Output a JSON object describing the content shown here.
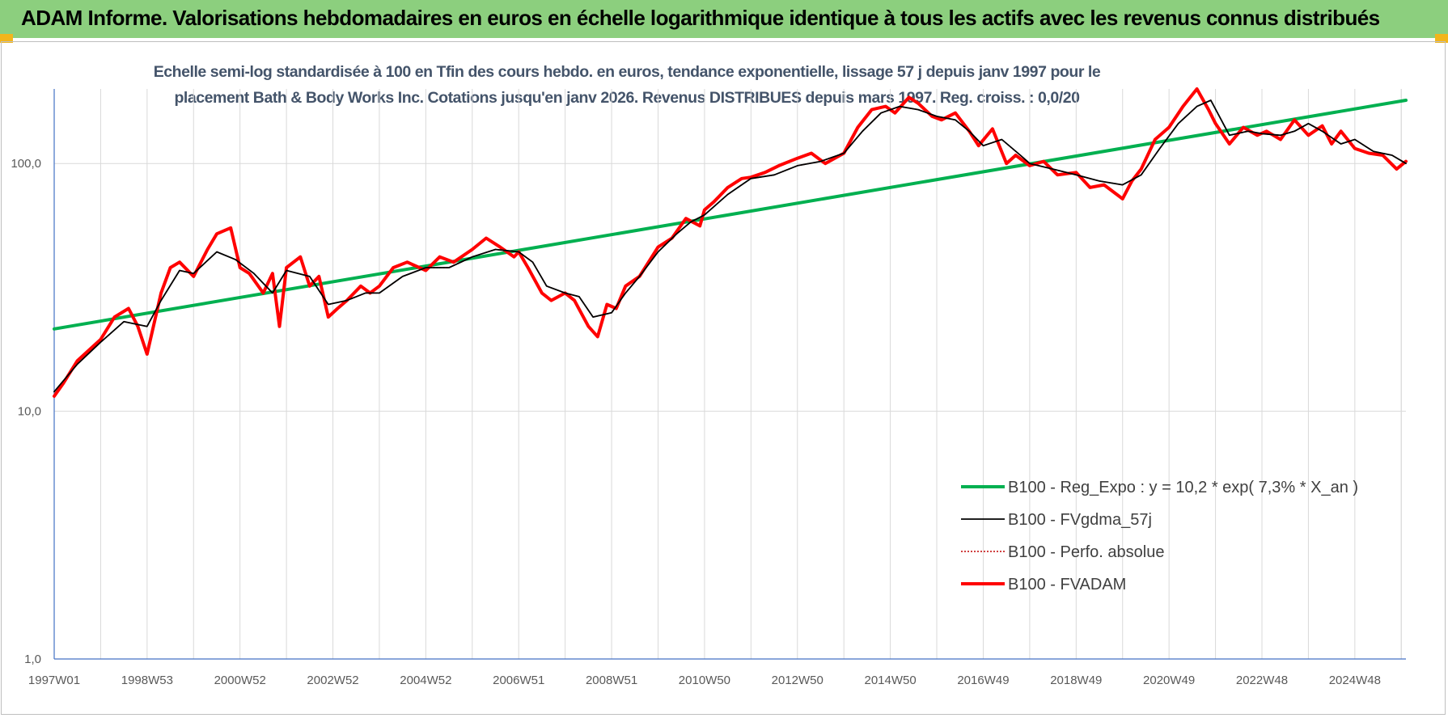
{
  "header": {
    "title": "ADAM Informe. Valorisations hebdomadaires en euros en échelle logarithmique identique à tous les actifs avec les revenus connus distribués"
  },
  "colors": {
    "header_bg": "#8ccf7e",
    "corner": "#f2b51c",
    "subtitle": "#44546a",
    "regression": "#00b050",
    "smoothed": "#000000",
    "perfo": "#c00000",
    "fvadam": "#ff0000"
  },
  "chart_data": {
    "type": "line",
    "title_line1": "Echelle semi-log standardisée à 100 en Tfin des cours hebdo. en euros, tendance exponentielle, lissage 57 j depuis janv 1997 pour le",
    "title_line2": "placement Bath & Body Works Inc. Cotations jusqu'en janv 2026.  Revenus DISTRIBUES depuis mars  1997. Reg. croiss. : 0,0/20",
    "y_scale": "log",
    "ylim": [
      1,
      200
    ],
    "xlim": [
      1997.0,
      2026.1
    ],
    "y_ticks": [
      {
        "value": 1,
        "label": "1,0"
      },
      {
        "value": 10,
        "label": "10,0"
      },
      {
        "value": 100,
        "label": "100,0"
      }
    ],
    "x_ticks": [
      {
        "value": 1997.0,
        "label": "1997W01"
      },
      {
        "value": 1999.0,
        "label": "1998W53"
      },
      {
        "value": 2001.0,
        "label": "2000W52"
      },
      {
        "value": 2003.0,
        "label": "2002W52"
      },
      {
        "value": 2005.0,
        "label": "2004W52"
      },
      {
        "value": 2007.0,
        "label": "2006W51"
      },
      {
        "value": 2009.0,
        "label": "2008W51"
      },
      {
        "value": 2011.0,
        "label": "2010W50"
      },
      {
        "value": 2013.0,
        "label": "2012W50"
      },
      {
        "value": 2015.0,
        "label": "2014W50"
      },
      {
        "value": 2017.0,
        "label": "2016W49"
      },
      {
        "value": 2019.0,
        "label": "2018W49"
      },
      {
        "value": 2021.0,
        "label": "2020W49"
      },
      {
        "value": 2023.0,
        "label": "2022W48"
      },
      {
        "value": 2025.0,
        "label": "2024W48"
      }
    ],
    "grid": "vertical and horizontal",
    "legend_position": "bottom-right",
    "series": [
      {
        "name": "B100 - Reg_Expo : y = 10,2 * exp( 7,3% *  X_an )",
        "color": "#00b050",
        "style": "thick",
        "x": [
          1997.0,
          2026.1
        ],
        "y": [
          21.5,
          180
        ]
      },
      {
        "name": "B100 - FVgdma_57j",
        "color": "#000000",
        "style": "thin",
        "x": [
          1997.0,
          1997.5,
          1998.0,
          1998.5,
          1999.0,
          1999.3,
          1999.7,
          2000.0,
          2000.5,
          2000.9,
          2001.3,
          2001.7,
          2002.0,
          2002.5,
          2002.9,
          2003.3,
          2003.7,
          2004.0,
          2004.5,
          2005.0,
          2005.5,
          2006.0,
          2006.5,
          2007.0,
          2007.3,
          2007.6,
          2008.0,
          2008.3,
          2008.6,
          2009.0,
          2009.3,
          2009.6,
          2010.0,
          2010.4,
          2010.7,
          2011.0,
          2011.5,
          2012.0,
          2012.5,
          2013.0,
          2013.5,
          2014.0,
          2014.4,
          2014.8,
          2015.2,
          2015.6,
          2016.0,
          2016.4,
          2016.7,
          2017.0,
          2017.4,
          2017.8,
          2018.0,
          2018.5,
          2019.0,
          2019.5,
          2020.0,
          2020.4,
          2020.8,
          2021.2,
          2021.6,
          2021.9,
          2022.3,
          2022.7,
          2023.0,
          2023.4,
          2023.7,
          2024.0,
          2024.3,
          2024.7,
          2025.0,
          2025.4,
          2025.8,
          2026.1
        ],
        "y": [
          12,
          15.5,
          19,
          23,
          22,
          28,
          37,
          36,
          44,
          41,
          36,
          30,
          37,
          35,
          27,
          28,
          30,
          30,
          35,
          38,
          38,
          42,
          45,
          44,
          40,
          32,
          30,
          29,
          24,
          25,
          30,
          35,
          44,
          52,
          58,
          62,
          75,
          87,
          90,
          98,
          102,
          110,
          135,
          160,
          170,
          165,
          155,
          150,
          135,
          118,
          125,
          108,
          100,
          95,
          90,
          85,
          82,
          90,
          115,
          145,
          170,
          180,
          130,
          135,
          132,
          130,
          135,
          145,
          135,
          120,
          125,
          112,
          108,
          100
        ]
      },
      {
        "name": "B100 - Perfo. absolue",
        "color": "#c00000",
        "style": "dotted",
        "x": [
          1997.0,
          1997.5,
          1998.0,
          1998.5,
          1999.0,
          1999.3,
          1999.7,
          2000.0,
          2000.5,
          2000.9,
          2001.3,
          2001.7,
          2002.0,
          2002.5,
          2002.9,
          2003.3,
          2003.7,
          2004.0,
          2004.5,
          2005.0,
          2005.5,
          2006.0,
          2006.5,
          2007.0,
          2007.3,
          2007.6,
          2008.0,
          2008.3,
          2008.6,
          2009.0,
          2009.3,
          2009.6,
          2010.0,
          2010.4,
          2010.7,
          2011.0,
          2011.5,
          2012.0,
          2012.5,
          2013.0,
          2013.5,
          2014.0,
          2014.4,
          2014.8,
          2015.2,
          2015.6,
          2016.0,
          2016.4,
          2016.7,
          2017.0,
          2017.4,
          2017.8,
          2018.0,
          2018.5,
          2019.0,
          2019.5,
          2020.0,
          2020.4,
          2020.8,
          2021.2,
          2021.6,
          2021.9,
          2022.3,
          2022.7,
          2023.0,
          2023.4,
          2023.7,
          2024.0,
          2024.3,
          2024.7,
          2025.0,
          2025.4,
          2025.8,
          2026.1
        ],
        "y": [
          12,
          15.5,
          19,
          23,
          22,
          28,
          37,
          36,
          44,
          41,
          36,
          30,
          37,
          35,
          27,
          28,
          30,
          30,
          35,
          38,
          38,
          42,
          45,
          44,
          40,
          32,
          30,
          29,
          24,
          25,
          30,
          35,
          44,
          52,
          58,
          62,
          75,
          87,
          90,
          98,
          102,
          110,
          135,
          160,
          170,
          165,
          155,
          150,
          135,
          118,
          125,
          108,
          100,
          95,
          90,
          85,
          82,
          90,
          115,
          145,
          170,
          180,
          130,
          135,
          132,
          130,
          135,
          145,
          135,
          120,
          125,
          112,
          108,
          100
        ]
      },
      {
        "name": "B100 - FVADAM",
        "color": "#ff0000",
        "style": "thick",
        "x": [
          1997.0,
          1997.2,
          1997.5,
          1997.8,
          1998.0,
          1998.3,
          1998.6,
          1998.8,
          1999.0,
          1999.3,
          1999.5,
          1999.7,
          2000.0,
          2000.3,
          2000.5,
          2000.8,
          2001.0,
          2001.2,
          2001.5,
          2001.7,
          2001.85,
          2002.0,
          2002.3,
          2002.5,
          2002.7,
          2002.9,
          2003.1,
          2003.3,
          2003.6,
          2003.8,
          2004.0,
          2004.3,
          2004.6,
          2005.0,
          2005.3,
          2005.6,
          2006.0,
          2006.3,
          2006.6,
          2006.9,
          2007.0,
          2007.2,
          2007.5,
          2007.7,
          2008.0,
          2008.2,
          2008.5,
          2008.7,
          2008.9,
          2009.1,
          2009.3,
          2009.6,
          2010.0,
          2010.3,
          2010.6,
          2010.9,
          2011.0,
          2011.2,
          2011.5,
          2011.8,
          2012.0,
          2012.3,
          2012.6,
          2013.0,
          2013.3,
          2013.6,
          2014.0,
          2014.3,
          2014.6,
          2014.9,
          2015.1,
          2015.4,
          2015.6,
          2015.9,
          2016.1,
          2016.4,
          2016.7,
          2016.9,
          2017.2,
          2017.5,
          2017.7,
          2018.0,
          2018.3,
          2018.6,
          2019.0,
          2019.3,
          2019.6,
          2020.0,
          2020.2,
          2020.4,
          2020.7,
          2021.0,
          2021.3,
          2021.6,
          2021.85,
          2022.0,
          2022.3,
          2022.6,
          2022.9,
          2023.1,
          2023.4,
          2023.7,
          2024.0,
          2024.3,
          2024.5,
          2024.7,
          2025.0,
          2025.3,
          2025.6,
          2025.9,
          2026.1
        ],
        "y": [
          11.5,
          13,
          16,
          18,
          19.5,
          24,
          26,
          22,
          17,
          30,
          38,
          40,
          35,
          45,
          52,
          55,
          38,
          36,
          30,
          36,
          22,
          38,
          42,
          32,
          35,
          24,
          26,
          28,
          32,
          30,
          32,
          38,
          40,
          37,
          42,
          40,
          45,
          50,
          46,
          42,
          44,
          38,
          30,
          28,
          30,
          28,
          22,
          20,
          27,
          26,
          32,
          35,
          46,
          50,
          60,
          56,
          65,
          70,
          80,
          87,
          88,
          92,
          98,
          105,
          110,
          100,
          110,
          140,
          165,
          170,
          160,
          185,
          175,
          155,
          150,
          160,
          135,
          118,
          138,
          100,
          108,
          98,
          102,
          90,
          92,
          80,
          82,
          72,
          85,
          95,
          125,
          140,
          170,
          200,
          165,
          145,
          120,
          140,
          130,
          135,
          125,
          150,
          130,
          142,
          120,
          135,
          115,
          110,
          108,
          95,
          102
        ]
      }
    ]
  }
}
